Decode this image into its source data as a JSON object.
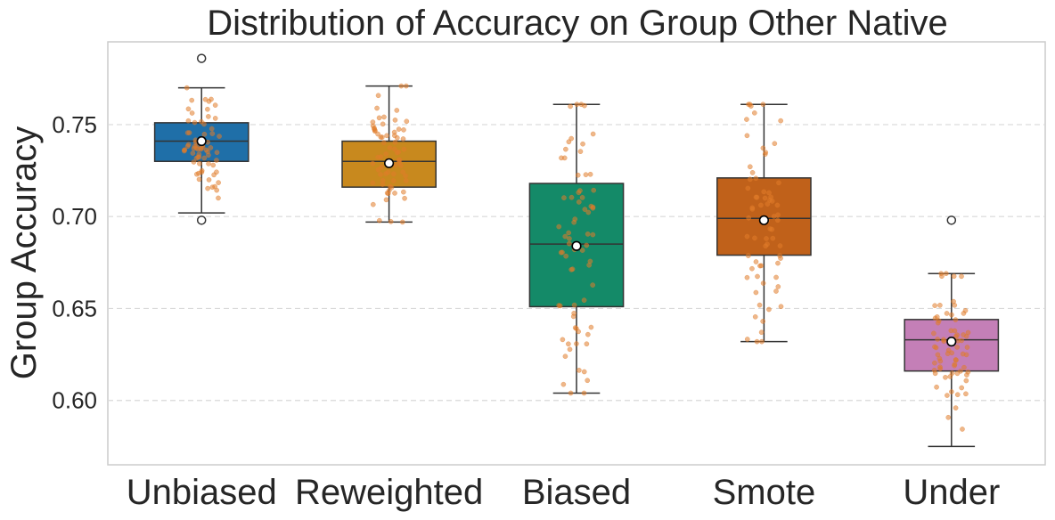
{
  "chart_data": {
    "type": "boxplot",
    "title": "Distribution of Accuracy on Group Other Native",
    "xlabel": "",
    "ylabel": "Group Accuracy",
    "ylim": [
      0.565,
      0.795
    ],
    "yticks": [
      0.6,
      0.65,
      0.7,
      0.75
    ],
    "ytick_labels": [
      "0.60",
      "0.65",
      "0.70",
      "0.75"
    ],
    "grid": "horizontal-dashed",
    "categories": [
      "Unbiased",
      "Reweighted",
      "Biased",
      "Smote",
      "Under"
    ],
    "box_colors": [
      "#1f6fa8",
      "#c8891e",
      "#148a68",
      "#c0611a",
      "#c47fb7"
    ],
    "point_color": "#e07b2a",
    "boxes": [
      {
        "name": "Unbiased",
        "whisker_low": 0.702,
        "q1": 0.73,
        "median": 0.741,
        "q3": 0.751,
        "whisker_high": 0.77,
        "mean": 0.741,
        "outliers": [
          0.698,
          0.786
        ]
      },
      {
        "name": "Reweighted",
        "whisker_low": 0.697,
        "q1": 0.716,
        "median": 0.73,
        "q3": 0.741,
        "whisker_high": 0.771,
        "mean": 0.729,
        "outliers": []
      },
      {
        "name": "Biased",
        "whisker_low": 0.604,
        "q1": 0.651,
        "median": 0.685,
        "q3": 0.718,
        "whisker_high": 0.761,
        "mean": 0.684,
        "outliers": []
      },
      {
        "name": "Smote",
        "whisker_low": 0.632,
        "q1": 0.679,
        "median": 0.699,
        "q3": 0.721,
        "whisker_high": 0.761,
        "mean": 0.698,
        "outliers": []
      },
      {
        "name": "Under",
        "whisker_low": 0.575,
        "q1": 0.616,
        "median": 0.633,
        "q3": 0.644,
        "whisker_high": 0.669,
        "mean": 0.632,
        "outliers": [
          0.698
        ]
      }
    ]
  }
}
